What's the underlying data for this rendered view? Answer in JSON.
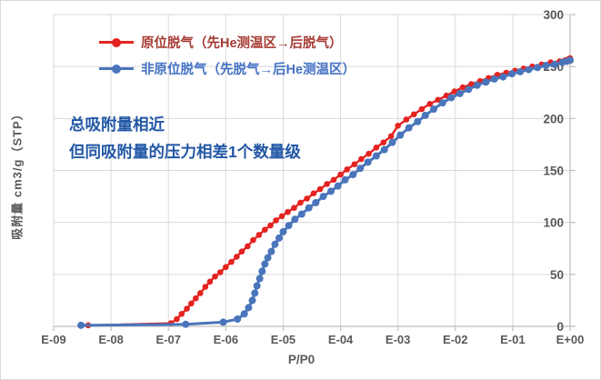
{
  "chart_data": {
    "type": "line",
    "title": "",
    "xlabel": "P/P0",
    "ylabel": "吸附量 cm3/g（STP）",
    "x_scale": "log",
    "x_ticks": [
      "E-09",
      "E-08",
      "E-07",
      "E-06",
      "E-05",
      "E-04",
      "E-03",
      "E-02",
      "E-01",
      "E+00"
    ],
    "x_tick_values": [
      1e-09,
      1e-08,
      1e-07,
      1e-06,
      1e-05,
      0.0001,
      0.001,
      0.01,
      0.1,
      1
    ],
    "xlim": [
      1e-09,
      1
    ],
    "ylim": [
      0,
      300
    ],
    "y_ticks": [
      0,
      50,
      100,
      150,
      200,
      250,
      300
    ],
    "y_axis_position": "right",
    "grid": true,
    "legend_position": "top-left",
    "colors": {
      "grid": "#d9d9d9",
      "axis": "#bfbfbf",
      "tick_label": "#595959"
    },
    "annotation": {
      "lines": [
        "总吸附量相近",
        "但同吸附量的压力相差1个数量级"
      ],
      "color": "#2257a5"
    },
    "series": [
      {
        "name": "原位脱气（先He测温区→后脱气）",
        "color": "#e42320",
        "legend_text_color": "#a63a32",
        "points": [
          [
            4e-09,
            1
          ],
          [
            1.1e-07,
            3
          ],
          [
            1.4e-07,
            7
          ],
          [
            1.7e-07,
            12
          ],
          [
            2.1e-07,
            17
          ],
          [
            2.5e-07,
            22
          ],
          [
            3e-07,
            27
          ],
          [
            3.6e-07,
            32
          ],
          [
            4.4e-07,
            38
          ],
          [
            5.3e-07,
            43
          ],
          [
            6.5e-07,
            48
          ],
          [
            8e-07,
            52
          ],
          [
            1e-06,
            57
          ],
          [
            1.25e-06,
            62
          ],
          [
            1.55e-06,
            67
          ],
          [
            1.9e-06,
            72
          ],
          [
            2.4e-06,
            77
          ],
          [
            3e-06,
            83
          ],
          [
            3.8e-06,
            88
          ],
          [
            4.8e-06,
            93
          ],
          [
            6e-06,
            97
          ],
          [
            7.5e-06,
            102
          ],
          [
            9.5e-06,
            106
          ],
          [
            1.2e-05,
            110
          ],
          [
            1.55e-05,
            114
          ],
          [
            2e-05,
            119
          ],
          [
            2.6e-05,
            123
          ],
          [
            3.4e-05,
            128
          ],
          [
            4.4e-05,
            132
          ],
          [
            5.8e-05,
            137
          ],
          [
            7.6e-05,
            141
          ],
          [
            0.0001,
            146
          ],
          [
            0.00013,
            151
          ],
          [
            0.000175,
            156
          ],
          [
            0.00023,
            161
          ],
          [
            0.00031,
            166
          ],
          [
            0.00042,
            172
          ],
          [
            0.00056,
            177
          ],
          [
            0.00076,
            183
          ],
          [
            0.001,
            193
          ],
          [
            0.0014,
            199
          ],
          [
            0.0019,
            204
          ],
          [
            0.0026,
            209
          ],
          [
            0.0036,
            214
          ],
          [
            0.005,
            218
          ],
          [
            0.007,
            222
          ],
          [
            0.0097,
            226
          ],
          [
            0.0135,
            230
          ],
          [
            0.019,
            233
          ],
          [
            0.027,
            236
          ],
          [
            0.038,
            239
          ],
          [
            0.054,
            242
          ],
          [
            0.077,
            244
          ],
          [
            0.11,
            246
          ],
          [
            0.155,
            248
          ],
          [
            0.22,
            250
          ],
          [
            0.32,
            252
          ],
          [
            0.46,
            254
          ],
          [
            0.66,
            255
          ],
          [
            0.82,
            256
          ],
          [
            0.93,
            257
          ],
          [
            1,
            258
          ]
        ]
      },
      {
        "name": "非原位脱气（先脱气→后He测温区）",
        "color": "#4a75bb",
        "legend_text_color": "#4472c4",
        "points": [
          [
            3e-09,
            1
          ],
          [
            2e-07,
            2
          ],
          [
            9e-07,
            4
          ],
          [
            1.6e-06,
            7
          ],
          [
            2.1e-06,
            12
          ],
          [
            2.5e-06,
            18
          ],
          [
            2.9e-06,
            25
          ],
          [
            3.2e-06,
            32
          ],
          [
            3.5e-06,
            39
          ],
          [
            3.9e-06,
            46
          ],
          [
            4.3e-06,
            53
          ],
          [
            4.8e-06,
            60
          ],
          [
            5.4e-06,
            66
          ],
          [
            6.2e-06,
            72
          ],
          [
            7.2e-06,
            79
          ],
          [
            8.5e-06,
            85
          ],
          [
            1e-05,
            91
          ],
          [
            1.25e-05,
            97
          ],
          [
            1.6e-05,
            103
          ],
          [
            2.1e-05,
            108
          ],
          [
            2.8e-05,
            114
          ],
          [
            3.7e-05,
            119
          ],
          [
            5e-05,
            125
          ],
          [
            6.8e-05,
            130
          ],
          [
            9e-05,
            135
          ],
          [
            0.00012,
            141
          ],
          [
            0.000165,
            146
          ],
          [
            0.00022,
            152
          ],
          [
            0.0003,
            158
          ],
          [
            0.00042,
            164
          ],
          [
            0.00058,
            170
          ],
          [
            0.0008,
            177
          ],
          [
            0.0011,
            184
          ],
          [
            0.00155,
            191
          ],
          [
            0.0022,
            197
          ],
          [
            0.003,
            203
          ],
          [
            0.0042,
            209
          ],
          [
            0.006,
            215
          ],
          [
            0.0085,
            220
          ],
          [
            0.012,
            224
          ],
          [
            0.017,
            228
          ],
          [
            0.024,
            232
          ],
          [
            0.034,
            235
          ],
          [
            0.048,
            238
          ],
          [
            0.068,
            240
          ],
          [
            0.097,
            243
          ],
          [
            0.135,
            245
          ],
          [
            0.19,
            247
          ],
          [
            0.27,
            249
          ],
          [
            0.38,
            251
          ],
          [
            0.54,
            252
          ],
          [
            0.73,
            254
          ],
          [
            0.88,
            255
          ],
          [
            1,
            256
          ]
        ]
      }
    ]
  }
}
